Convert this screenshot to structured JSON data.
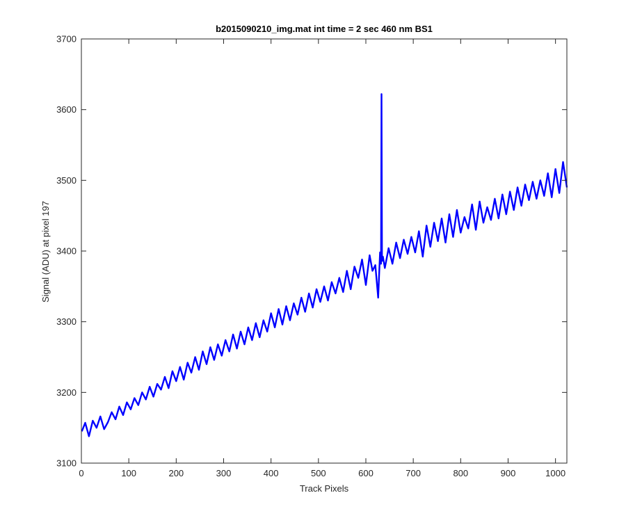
{
  "chart_data": {
    "type": "line",
    "title": "b2015090210_img.mat int time = 2 sec  460 nm BS1",
    "xlabel": "Track Pixels",
    "ylabel": "Signal (ADU) at pixel 197",
    "xlim": [
      0,
      1024
    ],
    "ylim": [
      3100,
      3700
    ],
    "xticks": [
      0,
      100,
      200,
      300,
      400,
      500,
      600,
      700,
      800,
      900,
      1000
    ],
    "yticks": [
      3100,
      3200,
      3300,
      3400,
      3500,
      3600,
      3700
    ],
    "grid": false,
    "series_color": "#0000ff",
    "series": [
      {
        "x": [
          1,
          8,
          16,
          24,
          32,
          40,
          48,
          56,
          64,
          72,
          80,
          88,
          96,
          104,
          112,
          120,
          128,
          136,
          144,
          152,
          160,
          168,
          176,
          184,
          192,
          200,
          208,
          216,
          224,
          232,
          240,
          248,
          256,
          264,
          272,
          280,
          288,
          296,
          304,
          312,
          320,
          328,
          336,
          344,
          352,
          360,
          368,
          376,
          384,
          392,
          400,
          408,
          416,
          424,
          432,
          440,
          448,
          456,
          464,
          472,
          480,
          488,
          496,
          504,
          512,
          520,
          528,
          536,
          544,
          552,
          560,
          568,
          576,
          584,
          592,
          600,
          608,
          614,
          620,
          626,
          630,
          632,
          633,
          634,
          636,
          640,
          648,
          656,
          664,
          672,
          680,
          688,
          696,
          704,
          712,
          720,
          728,
          736,
          744,
          752,
          760,
          768,
          776,
          784,
          792,
          800,
          808,
          816,
          824,
          832,
          840,
          848,
          856,
          864,
          872,
          880,
          888,
          896,
          904,
          912,
          920,
          928,
          936,
          944,
          952,
          960,
          968,
          976,
          984,
          992,
          1000,
          1008,
          1016,
          1024
        ],
        "values": [
          3145,
          3157,
          3138,
          3160,
          3150,
          3166,
          3148,
          3158,
          3172,
          3162,
          3180,
          3168,
          3186,
          3176,
          3192,
          3182,
          3200,
          3190,
          3208,
          3194,
          3212,
          3204,
          3222,
          3206,
          3230,
          3216,
          3236,
          3218,
          3242,
          3228,
          3250,
          3232,
          3258,
          3240,
          3264,
          3246,
          3268,
          3252,
          3274,
          3258,
          3282,
          3262,
          3286,
          3268,
          3292,
          3274,
          3298,
          3278,
          3302,
          3286,
          3312,
          3292,
          3318,
          3296,
          3322,
          3302,
          3326,
          3310,
          3334,
          3314,
          3340,
          3320,
          3346,
          3328,
          3350,
          3330,
          3356,
          3340,
          3362,
          3342,
          3372,
          3346,
          3378,
          3362,
          3388,
          3352,
          3394,
          3372,
          3380,
          3334,
          3398,
          3382,
          3622,
          3386,
          3392,
          3376,
          3404,
          3382,
          3412,
          3390,
          3416,
          3396,
          3420,
          3398,
          3428,
          3392,
          3436,
          3406,
          3440,
          3414,
          3446,
          3412,
          3452,
          3420,
          3458,
          3426,
          3448,
          3432,
          3466,
          3430,
          3470,
          3440,
          3462,
          3444,
          3474,
          3446,
          3480,
          3452,
          3484,
          3458,
          3490,
          3464,
          3494,
          3472,
          3498,
          3474,
          3500,
          3478,
          3510,
          3476,
          3516,
          3482,
          3526,
          3490
        ]
      }
    ]
  }
}
